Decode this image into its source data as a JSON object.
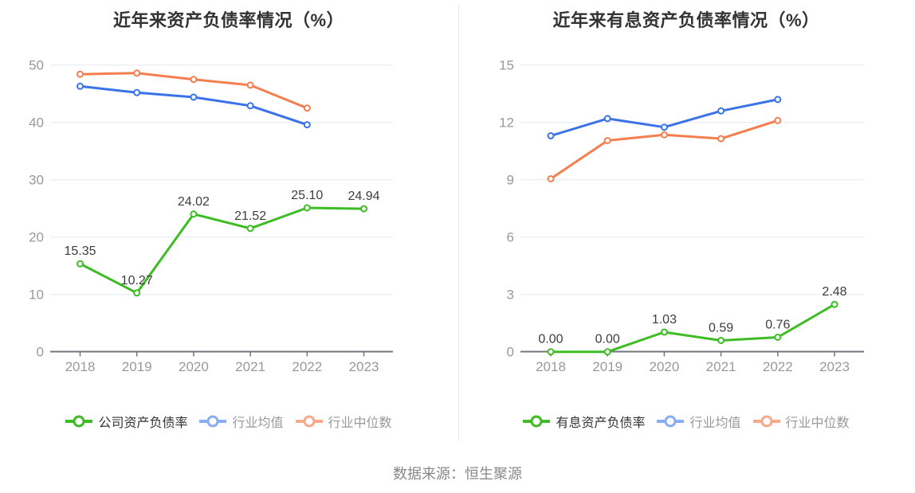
{
  "source_note": "数据来源：恒生聚源",
  "style": {
    "background": "#ffffff",
    "grid_color": "#e3e8f2",
    "axis_color": "#71757d",
    "tick_label_color": "#999999",
    "data_label_color": "#3d3d3d",
    "title_color": "#333333",
    "legend_dark_text": "#333333",
    "legend_gray_text": "#999999",
    "divider_color": "#e7e7e7",
    "source_color": "#888888",
    "green": "#3dbd23",
    "blue": "#3a73e8",
    "orange": "#f57e4e"
  },
  "chart_data": [
    {
      "type": "line",
      "title": "近年来资产负债率情况（%）",
      "categories": [
        "2018",
        "2019",
        "2020",
        "2021",
        "2022",
        "2023"
      ],
      "y_ticks": [
        0,
        10,
        20,
        30,
        40,
        50
      ],
      "ylim": [
        0,
        50
      ],
      "grid": true,
      "legend_position": "bottom",
      "series": [
        {
          "name": "公司资产负债率",
          "color": "#3dbd23",
          "legend_color": "#3dbd23",
          "legend_text_dark": true,
          "values": [
            15.35,
            10.27,
            24.02,
            21.52,
            25.1,
            24.94
          ],
          "point_labels": [
            "15.35",
            "10.27",
            "24.02",
            "21.52",
            "25.10",
            "24.94"
          ]
        },
        {
          "name": "行业均值",
          "color": "#3a73e8",
          "legend_color": "#88adf5",
          "legend_text_dark": false,
          "values": [
            46.3,
            45.2,
            44.4,
            42.9,
            39.6
          ],
          "point_labels": null
        },
        {
          "name": "行业中位数",
          "color": "#f57e4e",
          "legend_color": "#f8a98c",
          "legend_text_dark": false,
          "values": [
            48.4,
            48.6,
            47.5,
            46.5,
            42.5
          ],
          "point_labels": null
        }
      ]
    },
    {
      "type": "line",
      "title": "近年来有息资产负债率情况（%）",
      "categories": [
        "2018",
        "2019",
        "2020",
        "2021",
        "2022",
        "2023"
      ],
      "y_ticks": [
        0,
        3,
        6,
        9,
        12,
        15
      ],
      "ylim": [
        0,
        15
      ],
      "grid": true,
      "legend_position": "bottom",
      "series": [
        {
          "name": "有息资产负债率",
          "color": "#3dbd23",
          "legend_color": "#3dbd23",
          "legend_text_dark": true,
          "values": [
            0.0,
            0.0,
            1.03,
            0.59,
            0.76,
            2.48
          ],
          "point_labels": [
            "0.00",
            "0.00",
            "1.03",
            "0.59",
            "0.76",
            "2.48"
          ]
        },
        {
          "name": "行业均值",
          "color": "#3a73e8",
          "legend_color": "#88adf5",
          "legend_text_dark": false,
          "values": [
            11.3,
            12.2,
            11.75,
            12.6,
            13.2
          ],
          "point_labels": null
        },
        {
          "name": "行业中位数",
          "color": "#f57e4e",
          "legend_color": "#f8a98c",
          "legend_text_dark": false,
          "values": [
            9.05,
            11.05,
            11.35,
            11.15,
            12.1
          ],
          "point_labels": null
        }
      ]
    }
  ]
}
